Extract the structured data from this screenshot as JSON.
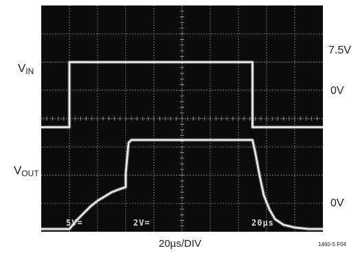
{
  "chart_data": {
    "type": "line",
    "title": "",
    "xlabel": "20µs/DIV",
    "time_per_div_us": 20,
    "grid": true,
    "grid_divisions": {
      "x": 10,
      "y": 8
    },
    "figure_id": "1460-5 F04",
    "channel_labels": {
      "vin": {
        "main": "V",
        "sub": "IN"
      },
      "vout": {
        "main": "V",
        "sub": "OUT"
      }
    },
    "scope_readouts": [
      "5V=",
      "2V=",
      "20µs"
    ],
    "right_labels": {
      "vin_high": "7.5V",
      "vin_low": "0V",
      "vout_low": "0V"
    },
    "series": [
      {
        "name": "VIN",
        "x_us": [
          0,
          20,
          20,
          150,
          150,
          200
        ],
        "y_div": [
          3.6,
          3.6,
          5.9,
          5.9,
          3.6,
          3.6
        ]
      },
      {
        "name": "VOUT",
        "x_us": [
          0,
          20,
          25,
          30,
          35,
          40,
          45,
          50,
          55,
          60,
          60,
          62,
          64,
          150,
          152,
          155,
          158,
          162,
          166,
          172,
          180,
          190,
          200
        ],
        "y_div": [
          0.0,
          0.0,
          0.3,
          0.55,
          0.8,
          1.0,
          1.15,
          1.3,
          1.4,
          1.48,
          1.95,
          3.05,
          3.15,
          3.15,
          2.7,
          1.9,
          1.2,
          0.7,
          0.35,
          0.15,
          0.05,
          0.0,
          0.0
        ]
      }
    ],
    "colors": {
      "screen": "#0b0b0b",
      "grid": "#8a8a8a",
      "trace": "#efefef",
      "text": "#231f20"
    }
  }
}
